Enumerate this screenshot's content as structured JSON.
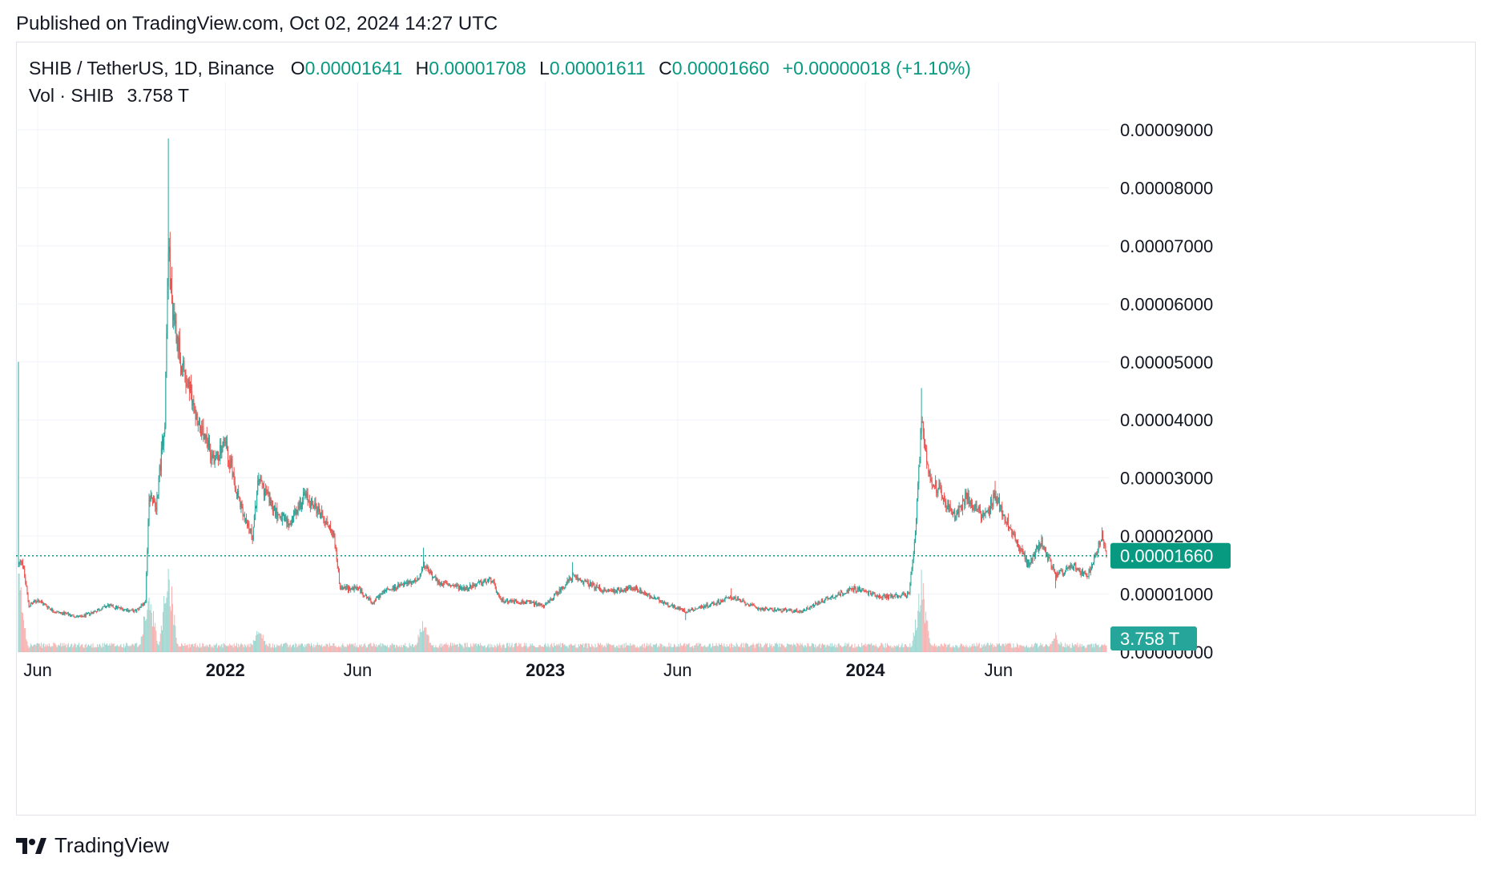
{
  "published": "Published on TradingView.com, Oct 02, 2024 14:27 UTC",
  "legend": {
    "symbol": "SHIB / TetherUS, 1D, Binance",
    "o_label": "O",
    "o_value": "0.00001641",
    "h_label": "H",
    "h_value": "0.00001708",
    "l_label": "L",
    "l_value": "0.00001611",
    "c_label": "C",
    "c_value": "0.00001660",
    "change": "+0.00000018 (+1.10%)"
  },
  "vol_legend": {
    "label": "Vol · SHIB",
    "value": "3.758 T"
  },
  "footer": {
    "brand": "TradingView",
    "logo_icon": "tradingview-logo-icon"
  },
  "colors": {
    "up": "#26a69a",
    "down": "#ef5350",
    "price_tag": "#089981",
    "vol_tag": "#26a69a",
    "grid": "#f0f3fa"
  },
  "chart_data": {
    "type": "candlestick",
    "x_axis": "date",
    "x_range": [
      "2021-05-10",
      "2024-10-02"
    ],
    "ylim": [
      0.0,
      9e-05
    ],
    "y_ticks": [
      "0.00009000",
      "0.00008000",
      "0.00007000",
      "0.00006000",
      "0.00005000",
      "0.00004000",
      "0.00003000",
      "0.00002000",
      "0.00001000",
      "0.00000000"
    ],
    "x_ticks": [
      {
        "date": "2021-06-01",
        "label": "Jun",
        "bold": false
      },
      {
        "date": "2022-01-01",
        "label": "2022",
        "bold": true
      },
      {
        "date": "2022-06-01",
        "label": "Jun",
        "bold": false
      },
      {
        "date": "2023-01-01",
        "label": "2023",
        "bold": true
      },
      {
        "date": "2023-06-01",
        "label": "Jun",
        "bold": false
      },
      {
        "date": "2024-01-01",
        "label": "2024",
        "bold": true
      },
      {
        "date": "2024-06-01",
        "label": "Jun",
        "bold": false
      }
    ],
    "last_price": 1.66e-05,
    "last_price_label": "0.00001660",
    "last_volume_label": "3.758 T",
    "grid": true,
    "price_path_anchors": [
      {
        "date": "2021-05-10",
        "price": 1.5e-05,
        "high": 5e-05
      },
      {
        "date": "2021-05-14",
        "price": 1.6e-05
      },
      {
        "date": "2021-05-22",
        "price": 8e-06
      },
      {
        "date": "2021-06-01",
        "price": 9e-06
      },
      {
        "date": "2021-06-20",
        "price": 7e-06
      },
      {
        "date": "2021-07-20",
        "price": 6e-06
      },
      {
        "date": "2021-08-20",
        "price": 8e-06
      },
      {
        "date": "2021-09-20",
        "price": 7e-06
      },
      {
        "date": "2021-10-02",
        "price": 8.5e-06
      },
      {
        "date": "2021-10-06",
        "price": 2.7e-05
      },
      {
        "date": "2021-10-14",
        "price": 2.5e-05
      },
      {
        "date": "2021-10-24",
        "price": 4e-05
      },
      {
        "date": "2021-10-28",
        "price": 7e-05,
        "high": 8.85e-05
      },
      {
        "date": "2021-11-01",
        "price": 6e-05
      },
      {
        "date": "2021-11-12",
        "price": 5e-05
      },
      {
        "date": "2021-12-04",
        "price": 3.8e-05
      },
      {
        "date": "2021-12-20",
        "price": 3.3e-05
      },
      {
        "date": "2022-01-01",
        "price": 3.6e-05
      },
      {
        "date": "2022-01-22",
        "price": 2.3e-05
      },
      {
        "date": "2022-02-01",
        "price": 2e-05
      },
      {
        "date": "2022-02-08",
        "price": 3e-05
      },
      {
        "date": "2022-02-28",
        "price": 2.4e-05
      },
      {
        "date": "2022-03-15",
        "price": 2.2e-05
      },
      {
        "date": "2022-04-01",
        "price": 2.7e-05
      },
      {
        "date": "2022-04-20",
        "price": 2.4e-05
      },
      {
        "date": "2022-05-05",
        "price": 2e-05
      },
      {
        "date": "2022-05-12",
        "price": 1.1e-05
      },
      {
        "date": "2022-06-01",
        "price": 1.1e-05
      },
      {
        "date": "2022-06-18",
        "price": 8.5e-06
      },
      {
        "date": "2022-07-01",
        "price": 1.05e-05
      },
      {
        "date": "2022-08-10",
        "price": 1.25e-05
      },
      {
        "date": "2022-08-15",
        "price": 1.5e-05,
        "high": 1.8e-05
      },
      {
        "date": "2022-09-01",
        "price": 1.2e-05
      },
      {
        "date": "2022-10-01",
        "price": 1.1e-05
      },
      {
        "date": "2022-11-01",
        "price": 1.25e-05
      },
      {
        "date": "2022-11-10",
        "price": 9e-06
      },
      {
        "date": "2022-12-15",
        "price": 8.5e-06
      },
      {
        "date": "2023-01-01",
        "price": 8e-06
      },
      {
        "date": "2023-02-01",
        "price": 1.3e-05,
        "high": 1.55e-05
      },
      {
        "date": "2023-03-10",
        "price": 1.05e-05
      },
      {
        "date": "2023-04-15",
        "price": 1.1e-05
      },
      {
        "date": "2023-05-01",
        "price": 9.5e-06
      },
      {
        "date": "2023-06-10",
        "price": 7e-06,
        "low": 5.5e-06
      },
      {
        "date": "2023-07-15",
        "price": 8.5e-06
      },
      {
        "date": "2023-08-01",
        "price": 9.5e-06,
        "high": 1.1e-05
      },
      {
        "date": "2023-09-01",
        "price": 7.5e-06
      },
      {
        "date": "2023-10-20",
        "price": 7e-06
      },
      {
        "date": "2023-11-15",
        "price": 9e-06
      },
      {
        "date": "2023-12-20",
        "price": 1.1e-05
      },
      {
        "date": "2024-01-20",
        "price": 9.5e-06
      },
      {
        "date": "2024-02-20",
        "price": 1e-05
      },
      {
        "date": "2024-02-27",
        "price": 2e-05
      },
      {
        "date": "2024-03-05",
        "price": 4e-05,
        "high": 4.55e-05
      },
      {
        "date": "2024-03-15",
        "price": 3e-05
      },
      {
        "date": "2024-03-25",
        "price": 2.8e-05
      },
      {
        "date": "2024-04-13",
        "price": 2.3e-05
      },
      {
        "date": "2024-04-25",
        "price": 2.7e-05
      },
      {
        "date": "2024-05-15",
        "price": 2.3e-05
      },
      {
        "date": "2024-05-28",
        "price": 2.7e-05,
        "high": 2.95e-05
      },
      {
        "date": "2024-06-18",
        "price": 2e-05
      },
      {
        "date": "2024-07-05",
        "price": 1.5e-05
      },
      {
        "date": "2024-07-20",
        "price": 1.9e-05
      },
      {
        "date": "2024-08-05",
        "price": 1.3e-05,
        "low": 1.1e-05
      },
      {
        "date": "2024-08-25",
        "price": 1.5e-05
      },
      {
        "date": "2024-09-10",
        "price": 1.3e-05
      },
      {
        "date": "2024-09-27",
        "price": 2e-05,
        "high": 2.15e-05
      },
      {
        "date": "2024-10-02",
        "price": 1.66e-05
      }
    ],
    "volume_spikes": [
      {
        "date": "2021-05-10",
        "level": 0.9
      },
      {
        "date": "2021-10-06",
        "level": 0.7
      },
      {
        "date": "2021-10-28",
        "level": 1.0
      },
      {
        "date": "2022-02-08",
        "level": 0.3
      },
      {
        "date": "2022-08-15",
        "level": 0.35
      },
      {
        "date": "2024-03-05",
        "level": 0.8
      },
      {
        "date": "2024-08-05",
        "level": 0.2
      }
    ]
  }
}
